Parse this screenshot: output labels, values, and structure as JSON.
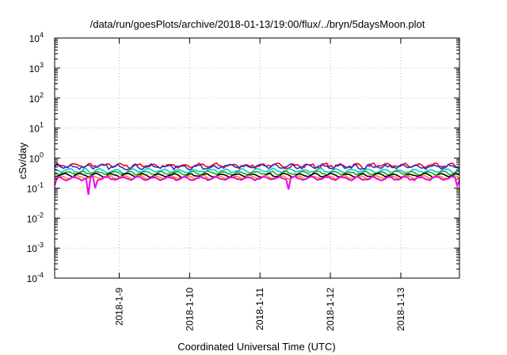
{
  "chart_data": {
    "type": "line",
    "title": "/data/run/goesPlots/archive/2018-01-13/19:00/flux/../bryn/5daysMoon.plot",
    "xlabel": "Coordinated Universal Time (UTC)",
    "ylabel": "cSv/day",
    "yscale": "log",
    "ylim": [
      0.0001,
      10000
    ],
    "y_tick_labels": [
      {
        "base": "10",
        "exp": "-4"
      },
      {
        "base": "10",
        "exp": "-3"
      },
      {
        "base": "10",
        "exp": "-2"
      },
      {
        "base": "10",
        "exp": "-1"
      },
      {
        "base": "10",
        "exp": "0"
      },
      {
        "base": "10",
        "exp": "1"
      },
      {
        "base": "10",
        "exp": "2"
      },
      {
        "base": "10",
        "exp": "3"
      },
      {
        "base": "10",
        "exp": "4"
      }
    ],
    "xlim": [
      "2018-01-08 02:00",
      "2018-01-13 20:00"
    ],
    "x_tick_labels": [
      "2018-1-9",
      "2018-1-10",
      "2018-1-11",
      "2018-1-12",
      "2018-1-13"
    ],
    "x_tick_values": [
      "2018-01-09",
      "2018-01-10",
      "2018-01-11",
      "2018-01-12",
      "2018-01-13"
    ],
    "grid": true,
    "legend": "none",
    "series": [
      {
        "color": "#ff0000",
        "level": 0.56,
        "noise": 0.12
      },
      {
        "color": "#2233dd",
        "level": 0.52,
        "noise": 0.12
      },
      {
        "color": "#00cccc",
        "level": 0.38,
        "noise": 0.08
      },
      {
        "color": "#22aa22",
        "level": 0.32,
        "noise": 0.06
      },
      {
        "color": "#000000",
        "level": 0.27,
        "noise": 0.05
      },
      {
        "color": "#ff8800",
        "level": 0.23,
        "noise": 0.05
      },
      {
        "color": "#ee00ee",
        "level": 0.21,
        "noise": 0.06
      }
    ],
    "dips": [
      {
        "x": "2018-01-08 02:00",
        "series": 6,
        "value": 0.12
      },
      {
        "x": "2018-01-08 13:30",
        "series": 6,
        "value": 0.06
      },
      {
        "x": "2018-01-08 15:30",
        "series": 6,
        "value": 0.1
      },
      {
        "x": "2018-01-11 10:00",
        "series": 6,
        "value": 0.09
      },
      {
        "x": "2018-01-13 19:00",
        "series": 6,
        "value": 0.12
      }
    ]
  }
}
